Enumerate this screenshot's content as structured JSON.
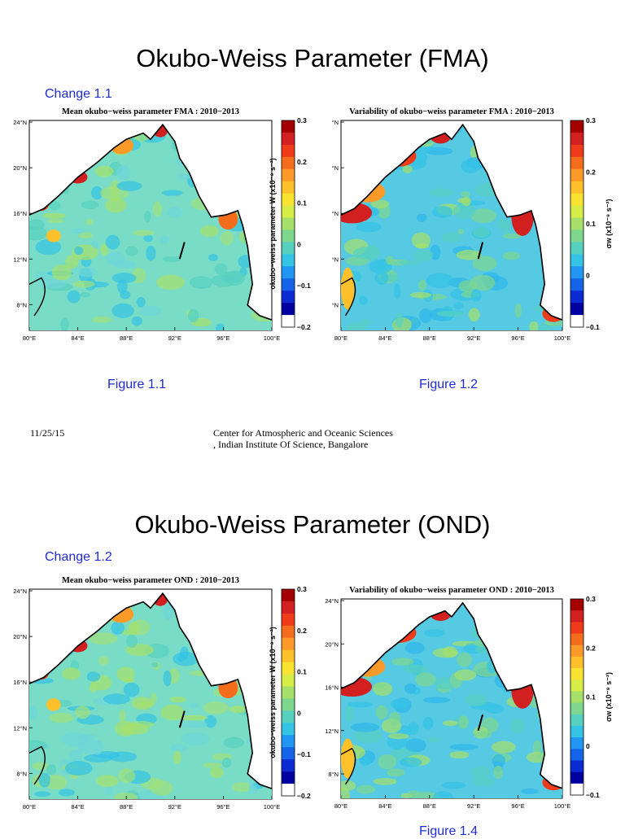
{
  "slides": [
    {
      "title": "Okubo-Weiss Parameter (FMA)",
      "change": "Change 1.1",
      "maps": [
        {
          "title": "Mean okubo−weiss parameter FMA : 2010−2013",
          "lat_ticks": [
            "24°N",
            "20°N",
            "16°N",
            "12°N",
            "8°N"
          ],
          "lon_ticks": [
            "80°E",
            "84°E",
            "88°E",
            "92°E",
            "96°E",
            "100°E"
          ],
          "colorbar_ticks": [
            "0.3",
            "0.2",
            "0.1",
            "0",
            "−0.1",
            "−0.2"
          ],
          "colorbar_label": "okubo−weiss parameter W (x10⁻⁹ s⁻²)",
          "caption": "Figure 1.1"
        },
        {
          "title": "Variability of okubo−weiss parameter FMA : 2010−2013",
          "lat_ticks": [
            "°N",
            "°N",
            "°N",
            "°N",
            "°N"
          ],
          "lon_ticks": [
            "80°E",
            "84°E",
            "88°E",
            "92°E",
            "96°E",
            "100°E"
          ],
          "colorbar_ticks": [
            "0.3",
            "0.2",
            "0.1",
            "0",
            "−0.1"
          ],
          "colorbar_label": "σw (x10⁻⁹ s⁻²)",
          "caption": "Figure 1.2"
        }
      ],
      "footer_date": "11/25/15",
      "footer_org_line1": "Center for Atmospheric and Oceanic Sciences",
      "footer_org_line2": ", Indian Institute Of Science, Bangalore"
    },
    {
      "title": "Okubo-Weiss Parameter (OND)",
      "change": "Change 1.2",
      "maps": [
        {
          "title": "Mean okubo−weiss parameter OND : 2010−2013",
          "lat_ticks": [
            "24°N",
            "20°N",
            "16°N",
            "12°N",
            "8°N"
          ],
          "lon_ticks": [
            "80°E",
            "84°E",
            "88°E",
            "92°E",
            "96°E",
            "100°E"
          ],
          "colorbar_ticks": [
            "0.3",
            "0.2",
            "0.1",
            "0",
            "−0.1",
            "−0.2"
          ],
          "colorbar_label": "okubo−weiss parameter W (x10⁻⁹ s⁻²)",
          "caption": ""
        },
        {
          "title": "Variability of okubo−weiss parameter OND : 2010−2013",
          "lat_ticks": [
            "24°N",
            "20°N",
            "16°N",
            "12°N",
            "8°N"
          ],
          "lon_ticks": [
            "80°E",
            "84°E",
            "88°E",
            "92°E",
            "96°E",
            "100°E"
          ],
          "colorbar_ticks": [
            "0.3",
            "0.2",
            "0.1",
            "0",
            "−0.1"
          ],
          "colorbar_label": "σw (x10⁻⁹ s⁻²)",
          "caption": "Figure 1.4"
        }
      ]
    }
  ],
  "colors": {
    "link": "#1f2bd4",
    "ocean": "#6fd6d8",
    "land": "#ffffff",
    "colorbar": [
      "#a50000",
      "#d21f1f",
      "#ef3b1a",
      "#f46d1c",
      "#fb9a29",
      "#fec02b",
      "#fae231",
      "#d6ec47",
      "#a6e06a",
      "#7fd78f",
      "#58d0c0",
      "#35c3e6",
      "#2196f3",
      "#1463e8",
      "#0a2ad2",
      "#0000a0"
    ]
  }
}
